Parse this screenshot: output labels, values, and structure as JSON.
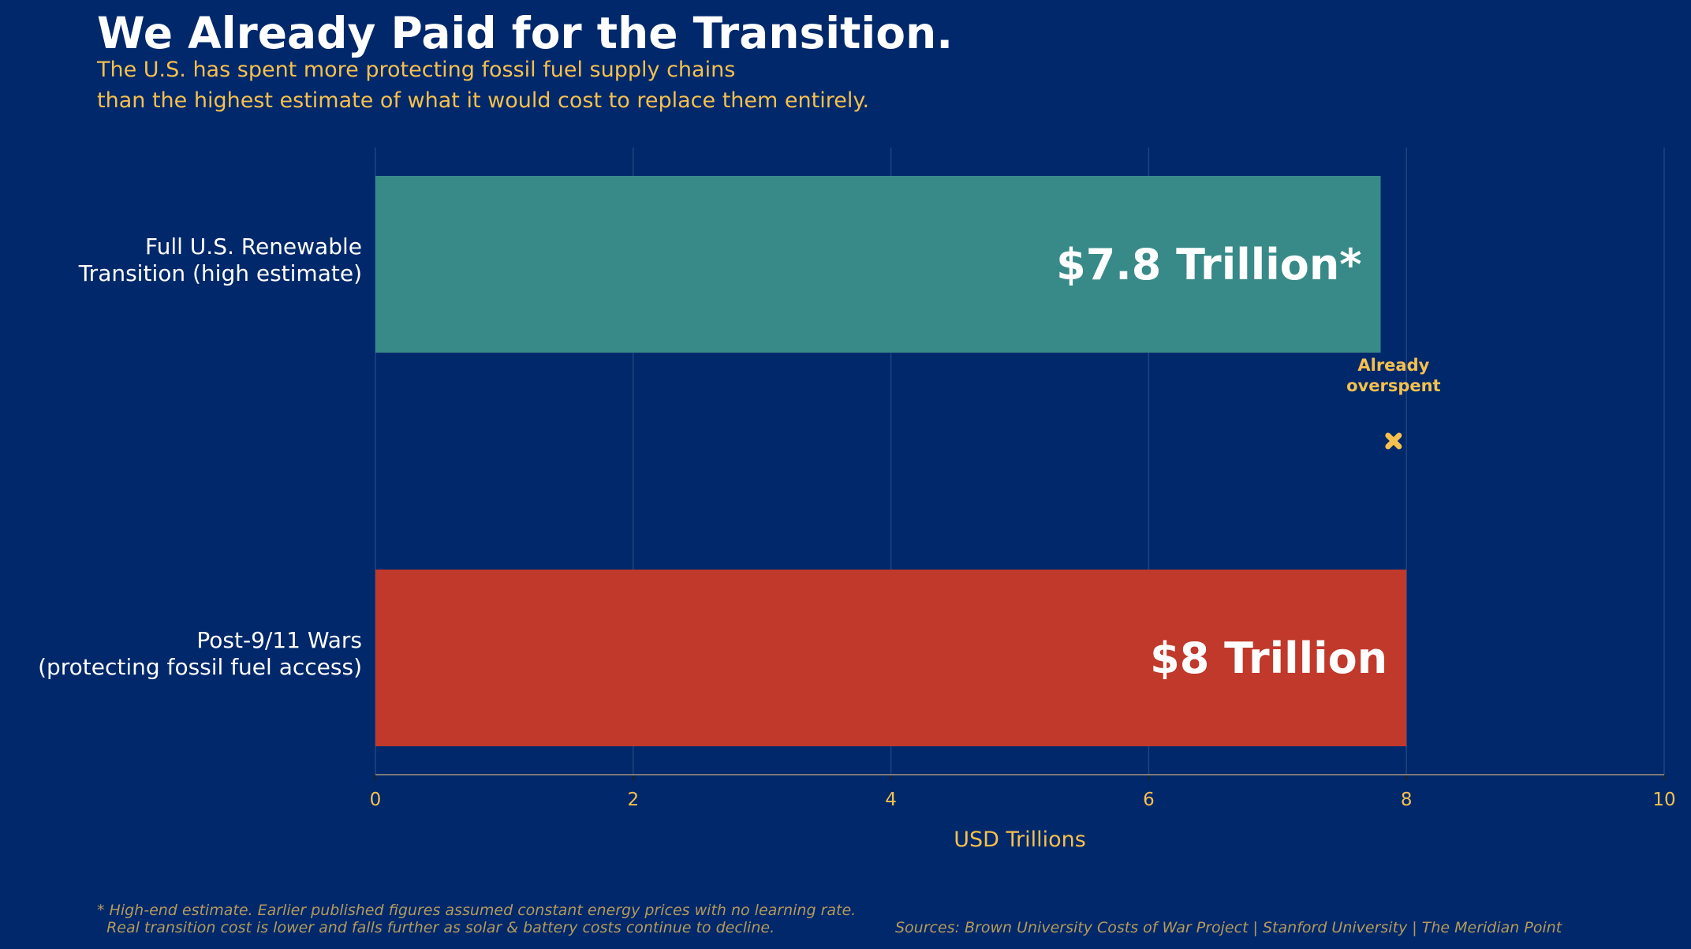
{
  "chart_data": {
    "type": "bar",
    "orientation": "horizontal",
    "title": "We Already Paid for the Transition.",
    "subtitle": [
      "The U.S. has spent more protecting fossil fuel supply chains",
      "than the highest estimate of what it would cost to replace them entirely."
    ],
    "categories": [
      [
        "Full U.S. Renewable",
        "Transition (high estimate)"
      ],
      [
        "Post-9/11 Wars",
        "(protecting fossil fuel access)"
      ]
    ],
    "values": [
      7.8,
      8
    ],
    "data_labels": [
      "$7.8 Trillion*",
      "$8 Trillion"
    ],
    "colors": [
      "#388a88",
      "#c0392b"
    ],
    "xlabel": "USD Trillions",
    "xlim": [
      0,
      10
    ],
    "xticks": [
      "0",
      "2",
      "4",
      "6",
      "8",
      "10"
    ],
    "grid": true,
    "annotation": {
      "text": [
        "Already",
        "overspent"
      ],
      "x": 7.9,
      "color": "#f5c04e"
    },
    "footnote": [
      "* High-end estimate. Earlier published figures assumed constant energy prices with no learning rate.",
      "  Real transition cost is lower and falls further as solar & battery costs continue to decline."
    ],
    "sources": "Sources: Brown University Costs of War Project | Stanford University | The Meridian Point"
  }
}
